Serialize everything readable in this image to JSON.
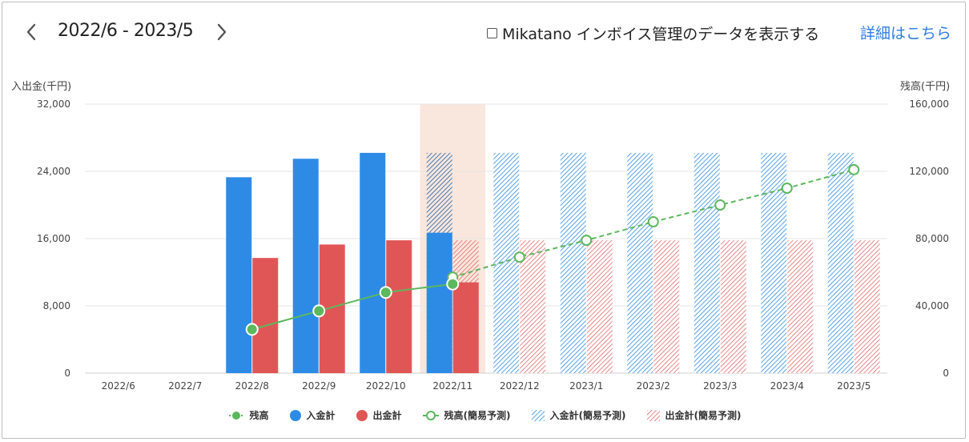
{
  "header": {
    "period": "2022/6 - 2023/5",
    "prev_icon": "chevron-left-icon",
    "next_icon": "chevron-right-icon",
    "toggle_label": "Mikatano インボイス管理のデータを表示する",
    "toggle_checked": false,
    "detail_link": "詳細はこちら"
  },
  "colors": {
    "inflow": "#2d8be6",
    "outflow": "#e05656",
    "balance": "#5cb85c",
    "highlight": "#f9e6dd",
    "grid": "#e6e6e6",
    "link": "#2f7de1"
  },
  "chart_data": {
    "type": "bar",
    "categories": [
      "2022/6",
      "2022/7",
      "2022/8",
      "2022/9",
      "2022/10",
      "2022/11",
      "2022/12",
      "2023/1",
      "2023/2",
      "2023/3",
      "2023/4",
      "2023/5"
    ],
    "highlight_category": "2022/11",
    "ylabel_left": "入出金(千円)",
    "ylabel_right": "残高(千円)",
    "ylim_left": [
      0,
      32000
    ],
    "ylim_right": [
      0,
      160000
    ],
    "yticks_left": [
      "0",
      "8,000",
      "16,000",
      "24,000",
      "32,000"
    ],
    "yticks_right": [
      "0",
      "40,000",
      "80,000",
      "120,000",
      "160,000"
    ],
    "grid": true,
    "legend_position": "bottom",
    "series": [
      {
        "name": "残高",
        "kind": "line",
        "axis": "right",
        "style": "solid-filled",
        "values": [
          null,
          null,
          26000,
          37000,
          48000,
          53000,
          null,
          null,
          null,
          null,
          null,
          null
        ]
      },
      {
        "name": "入金計",
        "kind": "bar",
        "axis": "left",
        "style": "solid",
        "values": [
          0,
          0,
          23300,
          25500,
          26200,
          16700,
          null,
          null,
          null,
          null,
          null,
          null
        ]
      },
      {
        "name": "出金計",
        "kind": "bar",
        "axis": "left",
        "style": "solid",
        "values": [
          0,
          0,
          13700,
          15300,
          15800,
          10800,
          null,
          null,
          null,
          null,
          null,
          null
        ]
      },
      {
        "name": "残高(簡易予測)",
        "kind": "line",
        "axis": "right",
        "style": "dashed-hollow",
        "values": [
          null,
          null,
          null,
          null,
          null,
          57000,
          69000,
          79000,
          90000,
          100000,
          110000,
          121000
        ]
      },
      {
        "name": "入金計(簡易予測)",
        "kind": "bar",
        "axis": "left",
        "style": "hatched",
        "values": [
          null,
          null,
          null,
          null,
          null,
          26200,
          26200,
          26200,
          26200,
          26200,
          26200,
          26200
        ]
      },
      {
        "name": "出金計(簡易予測)",
        "kind": "bar",
        "axis": "left",
        "style": "hatched",
        "values": [
          null,
          null,
          null,
          null,
          null,
          15800,
          15800,
          15800,
          15800,
          15800,
          15800,
          15800
        ]
      }
    ]
  }
}
